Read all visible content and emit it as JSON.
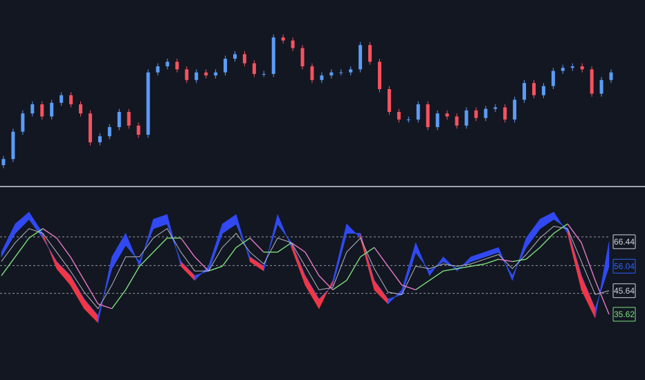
{
  "chart_data": [
    {
      "type": "candlestick",
      "ylim": [
        0,
        100
      ],
      "up_color": "#5b9cf6",
      "down_color": "#f7525f",
      "open": [
        5,
        9,
        27,
        39,
        45,
        37,
        46,
        51,
        45,
        39,
        20,
        24,
        30,
        40,
        31,
        25,
        66,
        70,
        73,
        68,
        61,
        66,
        64,
        66,
        75,
        78,
        72,
        65,
        65,
        89,
        87,
        82,
        70,
        61,
        64,
        66,
        66,
        68,
        84,
        73,
        55,
        40,
        35,
        35,
        45,
        30,
        39,
        37,
        31,
        41,
        36,
        42,
        43,
        35,
        48,
        59,
        51,
        57,
        67,
        69,
        70,
        68,
        52,
        61
      ],
      "high": [
        11,
        29,
        41,
        47,
        47,
        48,
        53,
        53,
        47,
        41,
        26,
        32,
        42,
        42,
        33,
        68,
        72,
        75,
        75,
        70,
        68,
        68,
        68,
        77,
        80,
        80,
        74,
        67,
        91,
        91,
        89,
        84,
        72,
        66,
        68,
        68,
        70,
        86,
        86,
        75,
        57,
        42,
        37,
        47,
        47,
        41,
        41,
        39,
        43,
        43,
        44,
        45,
        45,
        50,
        61,
        61,
        59,
        69,
        71,
        72,
        72,
        70,
        63,
        68
      ],
      "low": [
        3,
        7,
        25,
        37,
        35,
        35,
        44,
        43,
        37,
        18,
        18,
        22,
        28,
        29,
        23,
        23,
        64,
        68,
        66,
        59,
        59,
        62,
        62,
        64,
        73,
        70,
        63,
        63,
        63,
        85,
        80,
        68,
        59,
        59,
        62,
        64,
        64,
        66,
        71,
        53,
        38,
        33,
        33,
        33,
        28,
        28,
        35,
        29,
        29,
        34,
        34,
        40,
        33,
        33,
        46,
        49,
        49,
        55,
        65,
        67,
        66,
        50,
        50,
        59
      ],
      "close": [
        9,
        27,
        39,
        45,
        37,
        46,
        51,
        45,
        39,
        20,
        24,
        30,
        40,
        31,
        25,
        66,
        70,
        73,
        68,
        61,
        66,
        64,
        66,
        75,
        78,
        72,
        65,
        65,
        89,
        87,
        82,
        70,
        61,
        64,
        66,
        66,
        68,
        84,
        73,
        55,
        40,
        35,
        35,
        45,
        30,
        39,
        37,
        31,
        41,
        36,
        42,
        43,
        35,
        48,
        59,
        51,
        57,
        67,
        69,
        70,
        68,
        52,
        61,
        66
      ]
    },
    {
      "type": "oscillator",
      "ylim": [
        30,
        84
      ],
      "hlines": [
        68.5,
        56.3,
        44.5
      ],
      "band_colors": {
        "up": "#3148f2",
        "down": "#f23645"
      },
      "series": [
        {
          "color": "#d1d4dc",
          "values": [
            62,
            74,
            79,
            70,
            55,
            48,
            38,
            32,
            60,
            70,
            56,
            76,
            78,
            56,
            50,
            56,
            74,
            78,
            58,
            54,
            78,
            64,
            48,
            38,
            50,
            74,
            68,
            46,
            40,
            46,
            66,
            52,
            60,
            54,
            60,
            62,
            64,
            50,
            68,
            76,
            79,
            70,
            46,
            34,
            66.44
          ]
        },
        {
          "color": "#2962ff",
          "values": [
            60,
            70,
            76,
            68,
            58,
            52,
            42,
            35,
            55,
            65,
            58,
            72,
            74,
            58,
            52,
            54,
            70,
            74,
            60,
            56,
            74,
            66,
            52,
            42,
            48,
            70,
            70,
            50,
            42,
            44,
            62,
            54,
            58,
            55,
            58,
            60,
            62,
            52,
            64,
            72,
            76,
            72,
            52,
            38,
            56.04
          ]
        },
        {
          "color": "#d1d4dc",
          "values": [
            58,
            66,
            72,
            70,
            62,
            54,
            45,
            38,
            48,
            60,
            60,
            68,
            72,
            62,
            54,
            54,
            64,
            70,
            62,
            57,
            68,
            66,
            56,
            46,
            47,
            62,
            68,
            55,
            45,
            44,
            56,
            55,
            57,
            56,
            57,
            59,
            61,
            55,
            61,
            68,
            73,
            72,
            58,
            44,
            45.64
          ]
        },
        {
          "color": "#7ee07e",
          "down_color": "#e879c8",
          "values": [
            52,
            60,
            68,
            72,
            68,
            60,
            50,
            40,
            38,
            46,
            56,
            62,
            68,
            68,
            60,
            54,
            56,
            64,
            68,
            62,
            62,
            66,
            62,
            52,
            46,
            50,
            60,
            64,
            56,
            48,
            46,
            50,
            54,
            55,
            56,
            57,
            59,
            58,
            59,
            64,
            70,
            74,
            66,
            50,
            35.62
          ]
        }
      ]
    }
  ]
}
